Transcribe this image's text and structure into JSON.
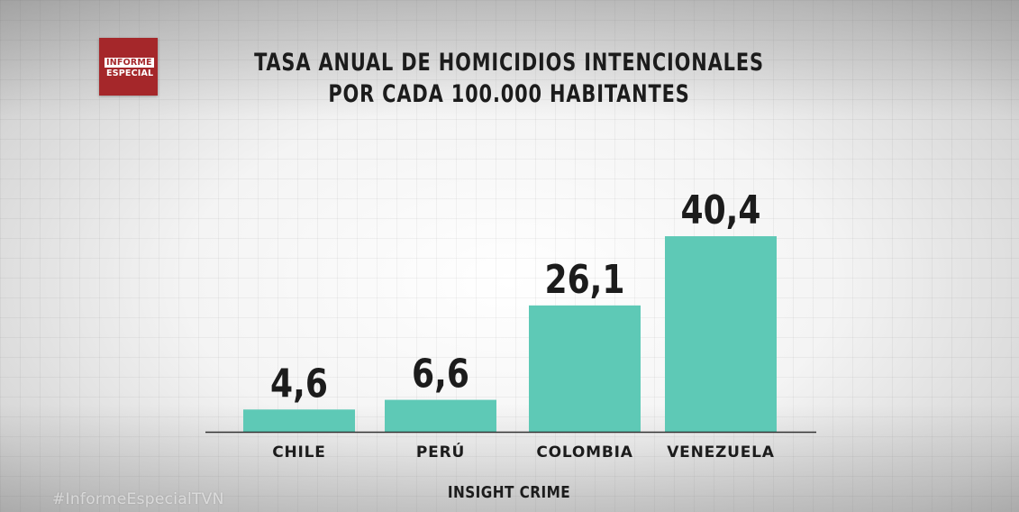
{
  "logo": {
    "line1": "INFORME",
    "line2": "ESPECIAL"
  },
  "title_line1": "TASA ANUAL DE HOMICIDIOS INTENCIONALES",
  "title_line2": "POR CADA 100.000 HABITANTES",
  "source": "INSIGHT CRIME",
  "watermark": "#InformeEspecialTVN",
  "colors": {
    "bar": "#5ec9b6",
    "axis": "#333333",
    "text": "#1c1c1c",
    "logo": "#a5272a"
  },
  "chart_data": {
    "type": "bar",
    "categories": [
      "CHILE",
      "PERÚ",
      "COLOMBIA",
      "VENEZUELA"
    ],
    "values": [
      4.6,
      6.6,
      26.1,
      40.4
    ],
    "value_labels": [
      "4,6",
      "6,6",
      "26,1",
      "40,4"
    ],
    "title": "TASA ANUAL DE HOMICIDIOS INTENCIONALES POR CADA 100.000 HABITANTES",
    "xlabel": "",
    "ylabel": "",
    "grid": false,
    "legend": "none"
  }
}
